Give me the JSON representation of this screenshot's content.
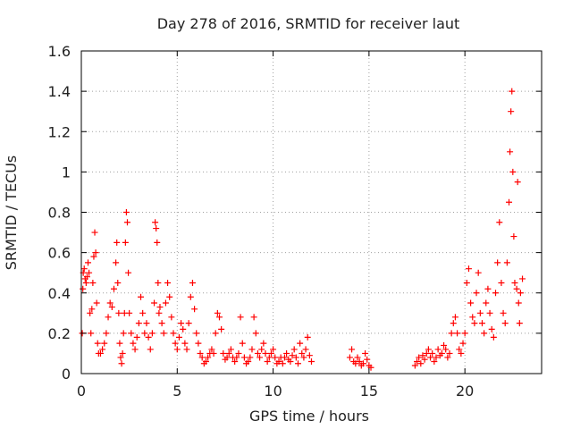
{
  "chart_data": {
    "type": "scatter",
    "title": "Day 278 of 2016, SRMTID for receiver laut",
    "xlabel": "GPS time / hours",
    "ylabel": "SRMTID / TECUs",
    "xlim": [
      0,
      24
    ],
    "ylim": [
      0,
      1.6
    ],
    "xticks": [
      0,
      5,
      10,
      15,
      20
    ],
    "yticks": [
      0,
      0.2,
      0.4,
      0.6,
      0.8,
      1,
      1.2,
      1.4,
      1.6
    ],
    "grid": true,
    "legend": "none",
    "marker": "plus",
    "color": "#ff0000",
    "series": [
      {
        "values": [
          [
            0.05,
            0.2
          ],
          [
            0.08,
            0.42
          ],
          [
            0.1,
            0.5
          ],
          [
            0.15,
            0.52
          ],
          [
            0.2,
            0.47
          ],
          [
            0.25,
            0.45
          ],
          [
            0.3,
            0.48
          ],
          [
            0.35,
            0.55
          ],
          [
            0.4,
            0.5
          ],
          [
            0.45,
            0.3
          ],
          [
            0.5,
            0.2
          ],
          [
            0.55,
            0.32
          ],
          [
            0.6,
            0.45
          ],
          [
            0.65,
            0.58
          ],
          [
            0.7,
            0.7
          ],
          [
            0.75,
            0.6
          ],
          [
            0.8,
            0.35
          ],
          [
            0.85,
            0.15
          ],
          [
            0.9,
            0.1
          ],
          [
            1.0,
            0.1
          ],
          [
            1.1,
            0.12
          ],
          [
            1.2,
            0.15
          ],
          [
            1.3,
            0.2
          ],
          [
            1.4,
            0.28
          ],
          [
            1.5,
            0.35
          ],
          [
            1.6,
            0.33
          ],
          [
            1.7,
            0.42
          ],
          [
            1.8,
            0.55
          ],
          [
            1.85,
            0.65
          ],
          [
            1.9,
            0.45
          ],
          [
            1.95,
            0.3
          ],
          [
            2.0,
            0.15
          ],
          [
            2.05,
            0.08
          ],
          [
            2.1,
            0.05
          ],
          [
            2.15,
            0.1
          ],
          [
            2.2,
            0.2
          ],
          [
            2.25,
            0.3
          ],
          [
            2.3,
            0.65
          ],
          [
            2.35,
            0.8
          ],
          [
            2.4,
            0.75
          ],
          [
            2.45,
            0.5
          ],
          [
            2.5,
            0.3
          ],
          [
            2.6,
            0.2
          ],
          [
            2.7,
            0.15
          ],
          [
            2.8,
            0.12
          ],
          [
            2.9,
            0.18
          ],
          [
            3.0,
            0.25
          ],
          [
            3.1,
            0.38
          ],
          [
            3.2,
            0.3
          ],
          [
            3.3,
            0.2
          ],
          [
            3.4,
            0.25
          ],
          [
            3.5,
            0.18
          ],
          [
            3.6,
            0.12
          ],
          [
            3.7,
            0.2
          ],
          [
            3.8,
            0.35
          ],
          [
            3.85,
            0.75
          ],
          [
            3.9,
            0.72
          ],
          [
            3.95,
            0.65
          ],
          [
            4.0,
            0.45
          ],
          [
            4.05,
            0.3
          ],
          [
            4.1,
            0.33
          ],
          [
            4.2,
            0.25
          ],
          [
            4.3,
            0.2
          ],
          [
            4.4,
            0.35
          ],
          [
            4.5,
            0.45
          ],
          [
            4.6,
            0.38
          ],
          [
            4.7,
            0.28
          ],
          [
            4.8,
            0.2
          ],
          [
            4.9,
            0.15
          ],
          [
            5.0,
            0.12
          ],
          [
            5.1,
            0.18
          ],
          [
            5.2,
            0.25
          ],
          [
            5.3,
            0.22
          ],
          [
            5.4,
            0.15
          ],
          [
            5.5,
            0.12
          ],
          [
            5.6,
            0.25
          ],
          [
            5.7,
            0.38
          ],
          [
            5.8,
            0.45
          ],
          [
            5.9,
            0.32
          ],
          [
            6.0,
            0.2
          ],
          [
            6.1,
            0.15
          ],
          [
            6.2,
            0.1
          ],
          [
            6.3,
            0.08
          ],
          [
            6.4,
            0.05
          ],
          [
            6.5,
            0.06
          ],
          [
            6.6,
            0.08
          ],
          [
            6.7,
            0.1
          ],
          [
            6.8,
            0.12
          ],
          [
            6.9,
            0.1
          ],
          [
            7.0,
            0.2
          ],
          [
            7.1,
            0.3
          ],
          [
            7.2,
            0.28
          ],
          [
            7.3,
            0.22
          ],
          [
            7.4,
            0.1
          ],
          [
            7.5,
            0.07
          ],
          [
            7.6,
            0.08
          ],
          [
            7.7,
            0.1
          ],
          [
            7.8,
            0.12
          ],
          [
            7.9,
            0.08
          ],
          [
            8.0,
            0.06
          ],
          [
            8.1,
            0.08
          ],
          [
            8.2,
            0.1
          ],
          [
            8.3,
            0.28
          ],
          [
            8.4,
            0.15
          ],
          [
            8.5,
            0.08
          ],
          [
            8.6,
            0.05
          ],
          [
            8.7,
            0.06
          ],
          [
            8.8,
            0.08
          ],
          [
            8.9,
            0.12
          ],
          [
            9.0,
            0.28
          ],
          [
            9.1,
            0.2
          ],
          [
            9.2,
            0.1
          ],
          [
            9.3,
            0.08
          ],
          [
            9.4,
            0.12
          ],
          [
            9.5,
            0.15
          ],
          [
            9.6,
            0.1
          ],
          [
            9.7,
            0.06
          ],
          [
            9.8,
            0.08
          ],
          [
            9.9,
            0.1
          ],
          [
            10.0,
            0.12
          ],
          [
            10.1,
            0.08
          ],
          [
            10.2,
            0.05
          ],
          [
            10.3,
            0.06
          ],
          [
            10.4,
            0.08
          ],
          [
            10.5,
            0.05
          ],
          [
            10.6,
            0.08
          ],
          [
            10.7,
            0.1
          ],
          [
            10.8,
            0.07
          ],
          [
            10.9,
            0.06
          ],
          [
            11.0,
            0.09
          ],
          [
            11.1,
            0.12
          ],
          [
            11.2,
            0.08
          ],
          [
            11.3,
            0.05
          ],
          [
            11.4,
            0.15
          ],
          [
            11.5,
            0.1
          ],
          [
            11.6,
            0.08
          ],
          [
            11.7,
            0.12
          ],
          [
            11.8,
            0.18
          ],
          [
            11.9,
            0.09
          ],
          [
            12.0,
            0.06
          ],
          [
            14.0,
            0.08
          ],
          [
            14.1,
            0.12
          ],
          [
            14.2,
            0.06
          ],
          [
            14.3,
            0.05
          ],
          [
            14.4,
            0.08
          ],
          [
            14.5,
            0.06
          ],
          [
            14.6,
            0.04
          ],
          [
            14.7,
            0.05
          ],
          [
            14.8,
            0.1
          ],
          [
            14.9,
            0.07
          ],
          [
            15.0,
            0.04
          ],
          [
            15.1,
            0.03
          ],
          [
            17.4,
            0.04
          ],
          [
            17.5,
            0.06
          ],
          [
            17.6,
            0.08
          ],
          [
            17.7,
            0.05
          ],
          [
            17.8,
            0.09
          ],
          [
            17.9,
            0.07
          ],
          [
            18.0,
            0.1
          ],
          [
            18.1,
            0.12
          ],
          [
            18.2,
            0.08
          ],
          [
            18.3,
            0.1
          ],
          [
            18.4,
            0.06
          ],
          [
            18.5,
            0.08
          ],
          [
            18.6,
            0.12
          ],
          [
            18.7,
            0.09
          ],
          [
            18.8,
            0.1
          ],
          [
            18.9,
            0.14
          ],
          [
            19.0,
            0.12
          ],
          [
            19.1,
            0.08
          ],
          [
            19.2,
            0.1
          ],
          [
            19.3,
            0.2
          ],
          [
            19.4,
            0.25
          ],
          [
            19.5,
            0.28
          ],
          [
            19.6,
            0.2
          ],
          [
            19.7,
            0.12
          ],
          [
            19.8,
            0.1
          ],
          [
            19.9,
            0.15
          ],
          [
            20.0,
            0.2
          ],
          [
            20.1,
            0.45
          ],
          [
            20.2,
            0.52
          ],
          [
            20.3,
            0.35
          ],
          [
            20.4,
            0.28
          ],
          [
            20.5,
            0.25
          ],
          [
            20.6,
            0.4
          ],
          [
            20.7,
            0.5
          ],
          [
            20.8,
            0.3
          ],
          [
            20.9,
            0.25
          ],
          [
            21.0,
            0.2
          ],
          [
            21.1,
            0.35
          ],
          [
            21.2,
            0.42
          ],
          [
            21.3,
            0.3
          ],
          [
            21.4,
            0.22
          ],
          [
            21.5,
            0.18
          ],
          [
            21.6,
            0.4
          ],
          [
            21.7,
            0.55
          ],
          [
            21.8,
            0.75
          ],
          [
            21.9,
            0.45
          ],
          [
            22.0,
            0.3
          ],
          [
            22.1,
            0.25
          ],
          [
            22.2,
            0.55
          ],
          [
            22.3,
            0.85
          ],
          [
            22.35,
            1.1
          ],
          [
            22.4,
            1.3
          ],
          [
            22.45,
            1.4
          ],
          [
            22.5,
            1.0
          ],
          [
            22.55,
            0.68
          ],
          [
            22.6,
            0.45
          ],
          [
            22.7,
            0.42
          ],
          [
            22.75,
            0.95
          ],
          [
            22.8,
            0.35
          ],
          [
            22.85,
            0.25
          ],
          [
            22.9,
            0.4
          ],
          [
            23.0,
            0.47
          ]
        ]
      }
    ]
  }
}
